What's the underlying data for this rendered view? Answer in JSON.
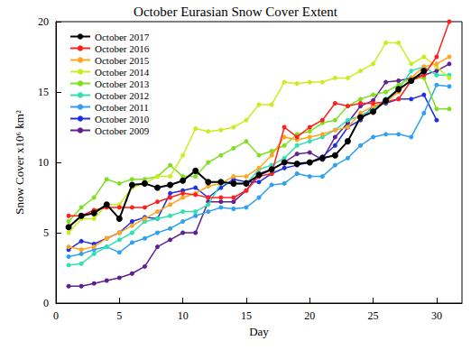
{
  "chart_data": {
    "type": "line",
    "title": "October Eurasian Snow Cover Extent",
    "x_label": "Day",
    "y_label": "Snow Cover x10⁶ km²",
    "x": [
      1,
      2,
      3,
      4,
      5,
      6,
      7,
      8,
      9,
      10,
      11,
      12,
      13,
      14,
      15,
      16,
      17,
      18,
      19,
      20,
      21,
      22,
      23,
      24,
      25,
      26,
      27,
      28,
      29,
      30,
      31
    ],
    "xlim": [
      0,
      32
    ],
    "xticks": [
      0,
      5,
      10,
      15,
      20,
      25,
      30
    ],
    "ylim": [
      0,
      20
    ],
    "yticks": [
      0,
      5,
      10,
      15,
      20
    ],
    "grid": false,
    "legend": "upper left",
    "marker": "circle",
    "line_style": "solid",
    "series": [
      {
        "name": "October 2017",
        "color": "#000000",
        "values": [
          5.4,
          6.2,
          6.4,
          7.0,
          6.0,
          8.4,
          8.5,
          8.2,
          8.4,
          8.7,
          9.4,
          8.6,
          8.6,
          8.5,
          8.5,
          9.1,
          9.5,
          10.0,
          9.9,
          10.0,
          10.3,
          10.5,
          11.5,
          13.2,
          13.6,
          14.4,
          15.2,
          15.8,
          16.5,
          null,
          null
        ]
      },
      {
        "name": "October 2016",
        "color": "#ff2020",
        "values": [
          6.2,
          6.2,
          6.6,
          6.8,
          6.8,
          6.8,
          6.8,
          7.2,
          7.5,
          7.8,
          7.7,
          7.5,
          7.5,
          7.5,
          8.0,
          9.0,
          9.2,
          12.5,
          11.8,
          12.5,
          13.0,
          14.2,
          14.0,
          14.2,
          14.2,
          14.3,
          14.5,
          15.8,
          16.2,
          17.5,
          20.0
        ]
      },
      {
        "name": "October 2015",
        "color": "#ffa520",
        "values": [
          4.0,
          3.8,
          4.0,
          4.6,
          5.0,
          5.5,
          6.0,
          6.5,
          7.0,
          7.5,
          7.8,
          8.3,
          8.5,
          9.0,
          9.0,
          9.6,
          10.5,
          11.8,
          11.6,
          11.8,
          12.0,
          12.3,
          12.5,
          13.5,
          14.0,
          14.3,
          15.0,
          16.0,
          16.8,
          17.0,
          17.5
        ]
      },
      {
        "name": "October 2014",
        "color": "#c8ee20",
        "values": [
          5.0,
          6.0,
          6.0,
          7.0,
          7.0,
          8.2,
          8.5,
          9.0,
          9.0,
          10.5,
          12.4,
          12.2,
          12.3,
          12.5,
          13.0,
          14.1,
          14.1,
          15.7,
          15.6,
          15.7,
          15.7,
          16.0,
          16.0,
          16.5,
          17.0,
          18.5,
          18.5,
          17.0,
          17.5,
          16.8,
          16.0
        ]
      },
      {
        "name": "October 2013",
        "color": "#80e020",
        "values": [
          5.8,
          6.8,
          7.5,
          8.8,
          8.5,
          8.8,
          8.8,
          9.0,
          9.8,
          9.0,
          9.0,
          10.0,
          10.5,
          11.0,
          11.5,
          10.5,
          10.8,
          11.2,
          12.0,
          12.2,
          12.8,
          13.0,
          14.0,
          14.5,
          14.8,
          15.0,
          15.5,
          16.0,
          16.0,
          13.8,
          13.8
        ]
      },
      {
        "name": "October 2012",
        "color": "#30e0b0",
        "values": [
          2.7,
          2.8,
          3.5,
          4.0,
          4.5,
          5.0,
          5.8,
          6.0,
          6.2,
          6.5,
          6.5,
          7.0,
          8.5,
          8.5,
          8.5,
          9.5,
          9.8,
          10.3,
          11.2,
          11.5,
          11.8,
          12.3,
          13.0,
          13.3,
          13.8,
          14.5,
          15.2,
          16.5,
          16.8,
          16.2,
          16.2
        ]
      },
      {
        "name": "October 2011",
        "color": "#30a0f0",
        "values": [
          3.3,
          3.5,
          3.8,
          4.0,
          3.6,
          4.3,
          4.6,
          5.0,
          5.3,
          5.8,
          6.2,
          6.5,
          6.8,
          6.7,
          6.8,
          7.5,
          8.4,
          8.5,
          9.2,
          9.0,
          9.0,
          9.8,
          10.3,
          11.2,
          11.8,
          12.0,
          12.0,
          11.8,
          13.5,
          15.5,
          15.4
        ]
      },
      {
        "name": "October 2010",
        "color": "#2030e0",
        "values": [
          3.8,
          4.4,
          4.2,
          4.6,
          5.0,
          5.8,
          6.1,
          6.0,
          7.8,
          8.0,
          8.2,
          7.5,
          8.2,
          8.8,
          8.6,
          8.6,
          9.2,
          9.6,
          9.8,
          10.0,
          10.4,
          11.2,
          12.5,
          13.0,
          14.0,
          14.2,
          14.5,
          14.5,
          14.8,
          13.0,
          null
        ]
      },
      {
        "name": "October 2009",
        "color": "#602090",
        "values": [
          1.2,
          1.2,
          1.4,
          1.6,
          1.8,
          2.1,
          2.6,
          4.0,
          4.5,
          5.0,
          5.0,
          7.2,
          7.2,
          7.2,
          8.0,
          9.2,
          9.5,
          10.0,
          10.6,
          10.7,
          10.2,
          11.8,
          12.8,
          14.0,
          14.4,
          15.7,
          15.8,
          16.0,
          16.2,
          16.5,
          17.0
        ]
      }
    ]
  }
}
